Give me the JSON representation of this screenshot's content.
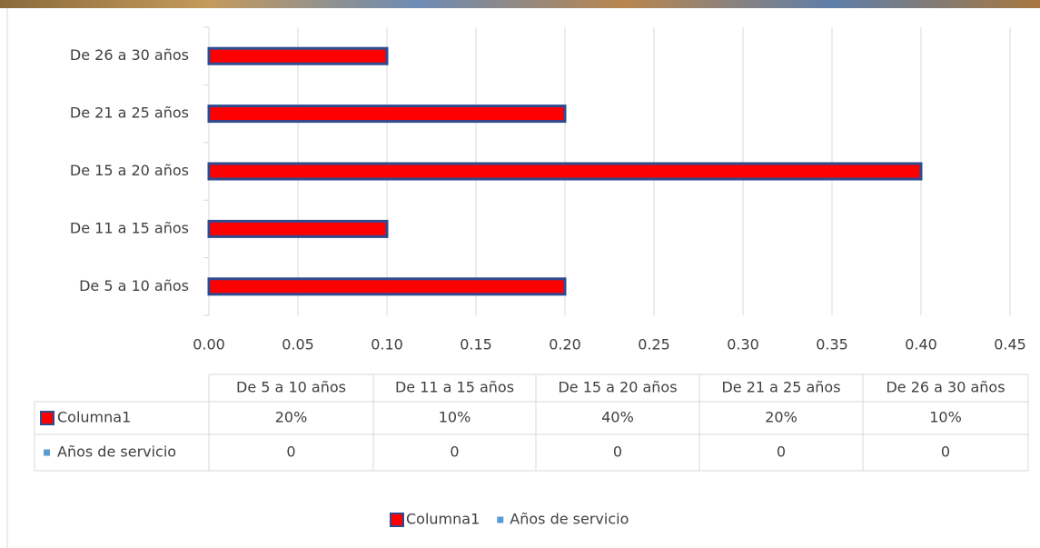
{
  "chart_data": {
    "type": "bar",
    "orientation": "horizontal",
    "categories": [
      "De 5 a 10 años",
      "De 11 a 15 años",
      "De 15 a 20 años",
      "De 21 a 25 años",
      "De 26 a 30 años"
    ],
    "series": [
      {
        "name": "Columna1",
        "color": "#ff0000",
        "edgecolor": "#2f4b8f",
        "values": [
          0.2,
          0.1,
          0.4,
          0.2,
          0.1
        ],
        "value_labels": [
          "20%",
          "10%",
          "40%",
          "20%",
          "10%"
        ]
      },
      {
        "name": "Años de servicio",
        "color": "#5b9bd5",
        "values": [
          0,
          0,
          0,
          0,
          0
        ]
      }
    ],
    "xlim": [
      0,
      0.45
    ],
    "xticks": [
      {
        "value": 0,
        "label": "0.00"
      },
      {
        "value": 0.05,
        "label": "0.05"
      },
      {
        "value": 0.1,
        "label": "0.10"
      },
      {
        "value": 0.15,
        "label": "0.15"
      },
      {
        "value": 0.2,
        "label": "0.20"
      },
      {
        "value": 0.25,
        "label": "0.25"
      },
      {
        "value": 0.3,
        "label": "0.30"
      },
      {
        "value": 0.35,
        "label": "0.35"
      },
      {
        "value": 0.4,
        "label": "0.40"
      },
      {
        "value": 0.45,
        "label": "0.45"
      }
    ],
    "grid": true,
    "data_table": true,
    "legend": "bottom"
  }
}
